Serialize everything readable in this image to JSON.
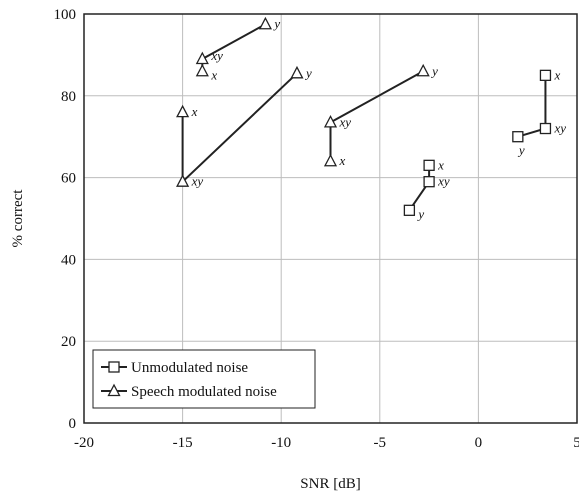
{
  "chart_data": {
    "type": "scatter",
    "xlabel": "SNR [dB]",
    "ylabel": "% correct",
    "xlim": [
      -20,
      5
    ],
    "ylim": [
      0,
      100
    ],
    "x_ticks": [
      -20,
      -15,
      -10,
      -5,
      0,
      5
    ],
    "x_tick_labels": [
      "-20",
      "-15",
      "-10",
      "-5",
      "0",
      "5"
    ],
    "y_ticks": [
      0,
      20,
      40,
      60,
      80,
      100
    ],
    "y_tick_labels": [
      "0",
      "20",
      "40",
      "60",
      "80",
      "100"
    ],
    "grid": true,
    "legend_position": "bottom-left",
    "series": [
      {
        "name": "Unmodulated noise",
        "marker": "square",
        "groups": [
          {
            "points": [
              {
                "x": -2.5,
                "y": 63,
                "label": "x"
              },
              {
                "x": -2.5,
                "y": 59,
                "label": "xy"
              },
              {
                "x": -3.5,
                "y": 52,
                "label": "y"
              }
            ]
          },
          {
            "points": [
              {
                "x": 3.4,
                "y": 85,
                "label": "x"
              },
              {
                "x": 3.4,
                "y": 72,
                "label": "xy"
              },
              {
                "x": 2.0,
                "y": 70,
                "label": "y"
              }
            ]
          }
        ]
      },
      {
        "name": "Speech modulated noise",
        "marker": "triangle",
        "groups": [
          {
            "points": [
              {
                "x": -14.0,
                "y": 86,
                "label": "x"
              },
              {
                "x": -14.0,
                "y": 89,
                "label": "xy"
              },
              {
                "x": -10.8,
                "y": 97.5,
                "label": "y"
              }
            ]
          },
          {
            "points": [
              {
                "x": -15.0,
                "y": 76,
                "label": "x"
              },
              {
                "x": -15.0,
                "y": 59,
                "label": "xy"
              },
              {
                "x": -9.2,
                "y": 85.5,
                "label": "y"
              }
            ]
          },
          {
            "points": [
              {
                "x": -7.5,
                "y": 64,
                "label": "x"
              },
              {
                "x": -7.5,
                "y": 73.5,
                "label": "xy"
              },
              {
                "x": -2.8,
                "y": 86,
                "label": "y"
              }
            ]
          }
        ]
      }
    ]
  }
}
